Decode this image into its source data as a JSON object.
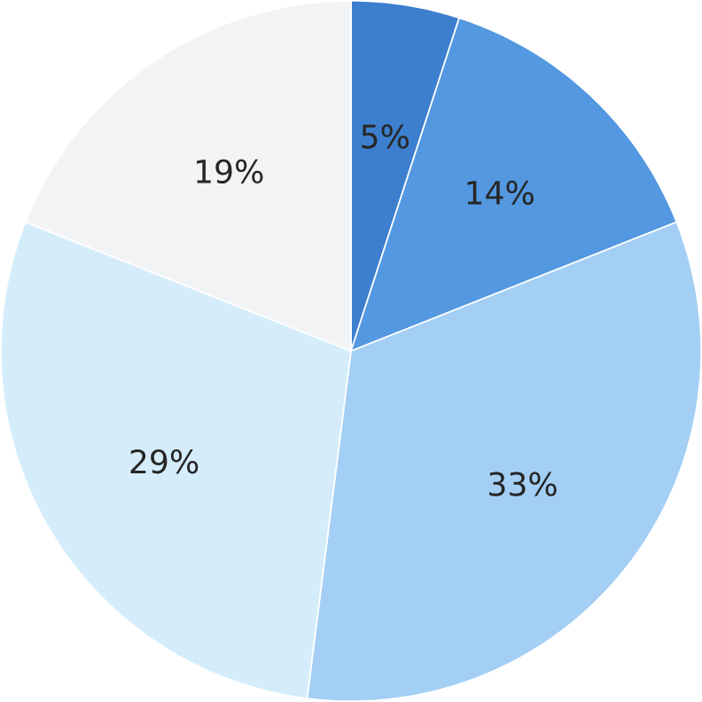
{
  "chart_data": {
    "type": "pie",
    "categories": [
      null,
      null,
      null,
      null,
      null
    ],
    "values": [
      5,
      14,
      33,
      29,
      19
    ],
    "colors": [
      "#3d7fcf",
      "#5398e0",
      "#a4cff5",
      "#d5edfb",
      "#f1f3f5"
    ],
    "value_labels": [
      "5%",
      "14%",
      "33%",
      "29%",
      "19%"
    ]
  }
}
